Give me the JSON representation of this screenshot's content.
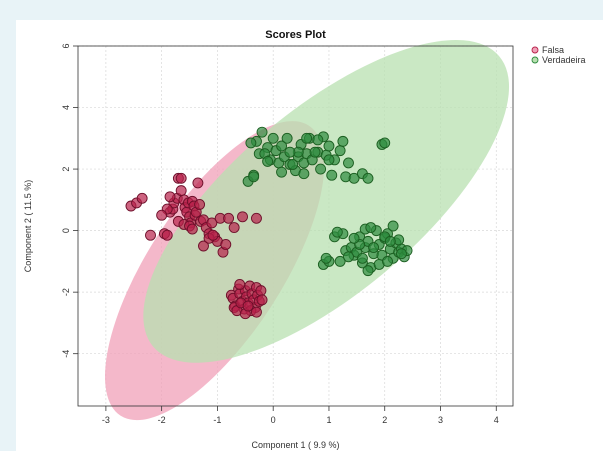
{
  "chart_data": {
    "type": "scatter",
    "title": "Scores Plot",
    "xlabel": "Component 1 ( 9.9 %)",
    "ylabel": "Component 2 ( 11.5 %)",
    "xlim": [
      -3.5,
      4.3
    ],
    "ylim": [
      -5.7,
      6.0
    ],
    "xticks": [
      -3,
      -2,
      -1,
      0,
      1,
      2,
      3,
      4
    ],
    "yticks": [
      -4,
      -2,
      0,
      2,
      4,
      6
    ],
    "grid": true,
    "legend_position": "top-right",
    "series": [
      {
        "name": "Falsa",
        "fill": "#b8214a",
        "stroke": "#6d0f2a",
        "ellipse_color": "#f0a0b8",
        "ellipse": {
          "cx": -1.05,
          "cy": -1.3,
          "rx": 3.1,
          "ry": 1.2,
          "angle_deg": -57
        },
        "x": [
          -2.55,
          -2.45,
          -2.35,
          -2.2,
          -1.95,
          -1.9,
          -1.85,
          -1.8,
          -1.78,
          -1.72,
          -1.7,
          -1.65,
          -1.6,
          -1.58,
          -1.55,
          -1.52,
          -1.5,
          -1.48,
          -1.45,
          -1.42,
          -1.4,
          -1.38,
          -1.35,
          -1.32,
          -1.3,
          -1.25,
          -1.2,
          -1.15,
          -1.1,
          -1.05,
          -1.0,
          -0.95,
          -0.9,
          -0.85,
          -0.8,
          -0.7,
          -0.55,
          -0.3,
          -1.9,
          -2.0,
          -1.7,
          -1.6,
          -1.5,
          -1.45,
          -1.65,
          -1.85,
          -1.25,
          -1.15,
          -1.08,
          -0.75,
          -0.72,
          -0.68,
          -0.62,
          -0.6,
          -0.55,
          -0.52,
          -0.5,
          -0.48,
          -0.45,
          -0.42,
          -0.38,
          -0.35,
          -0.32,
          -0.3,
          -0.28,
          -0.25,
          -0.22,
          -0.7,
          -0.65,
          -0.58,
          -0.4,
          -0.2,
          -0.5,
          -0.6,
          -0.45,
          -0.3
        ],
        "y": [
          0.8,
          0.9,
          1.05,
          -0.15,
          -0.1,
          -0.15,
          0.6,
          0.7,
          0.9,
          1.05,
          1.7,
          1.7,
          1.0,
          0.75,
          0.6,
          0.9,
          0.45,
          0.25,
          0.95,
          0.8,
          0.5,
          0.6,
          1.55,
          0.85,
          0.3,
          0.35,
          0.1,
          -0.1,
          0.25,
          -0.2,
          -0.35,
          0.4,
          -0.7,
          -0.45,
          0.4,
          0.1,
          0.45,
          0.4,
          0.7,
          0.5,
          0.3,
          0.2,
          0.15,
          0.05,
          1.3,
          1.1,
          -0.5,
          -0.25,
          -0.15,
          -2.1,
          -2.2,
          -2.45,
          -1.9,
          -2.05,
          -2.3,
          -2.55,
          -1.95,
          -2.15,
          -2.35,
          -1.8,
          -2.05,
          -2.25,
          -2.5,
          -1.85,
          -2.1,
          -2.3,
          -1.95,
          -2.5,
          -2.6,
          -2.35,
          -2.6,
          -2.25,
          -2.7,
          -1.75,
          -2.45,
          -2.65
        ]
      },
      {
        "name": "Verdadeira",
        "fill": "#2e8b3e",
        "stroke": "#1b5e20",
        "ellipse_color": "#b8e0b0",
        "ellipse": {
          "cx": 0.95,
          "cy": 0.95,
          "rx": 4.05,
          "ry": 1.65,
          "angle_deg": -40
        },
        "x": [
          -0.35,
          -0.3,
          -0.25,
          -0.2,
          -0.1,
          -0.05,
          0.0,
          0.05,
          0.1,
          0.15,
          0.2,
          0.25,
          0.3,
          0.4,
          0.45,
          0.5,
          0.55,
          0.6,
          0.65,
          0.7,
          0.8,
          0.85,
          0.9,
          0.95,
          1.0,
          1.05,
          1.1,
          1.2,
          1.25,
          1.3,
          1.35,
          0.45,
          -0.4,
          -0.15,
          0.35,
          0.15,
          0.75,
          1.95,
          2.0,
          -0.1,
          0.55,
          1.0,
          0.8,
          -0.45,
          -0.35,
          1.45,
          1.6,
          1.7,
          0.3,
          0.6
        ],
        "y": [
          1.8,
          2.9,
          2.5,
          3.2,
          2.7,
          2.3,
          3.0,
          2.6,
          2.2,
          2.75,
          2.4,
          3.0,
          2.15,
          1.95,
          2.4,
          2.8,
          2.2,
          2.5,
          3.0,
          2.3,
          2.55,
          2.0,
          3.05,
          2.45,
          2.75,
          1.8,
          2.3,
          2.6,
          2.9,
          1.75,
          2.2,
          2.55,
          2.85,
          2.5,
          2.15,
          1.9,
          2.55,
          2.8,
          2.85,
          2.25,
          1.85,
          2.3,
          2.95,
          1.6,
          1.75,
          1.7,
          1.85,
          1.7,
          2.55,
          3.0
        ]
      },
      {
        "name": "Verdadeira (lower cluster)",
        "fill": "#2e8b3e",
        "stroke": "#1b5e20",
        "legend": false,
        "x": [
          0.9,
          1.0,
          1.1,
          1.2,
          1.3,
          1.4,
          1.45,
          1.5,
          1.55,
          1.6,
          1.65,
          1.7,
          1.75,
          1.8,
          1.85,
          1.9,
          1.95,
          2.0,
          2.05,
          2.1,
          2.15,
          2.2,
          2.25,
          2.3,
          2.35,
          2.4,
          1.25,
          1.6,
          1.7,
          1.8,
          1.9,
          2.0,
          1.55,
          1.65,
          1.35,
          2.15,
          2.25,
          1.45,
          1.75,
          2.05,
          1.15,
          0.95,
          2.3,
          2.1
        ],
        "y": [
          -1.1,
          -1.0,
          -0.2,
          -1.0,
          -0.65,
          -0.55,
          -0.8,
          -0.7,
          -0.2,
          -1.05,
          -0.55,
          -0.35,
          -1.2,
          -0.75,
          0.0,
          -0.45,
          -0.8,
          -0.25,
          -0.1,
          -0.6,
          -0.9,
          -0.4,
          -0.7,
          -0.6,
          -0.85,
          -0.65,
          -0.1,
          -0.9,
          -1.3,
          -0.55,
          -1.1,
          -0.2,
          -0.45,
          0.05,
          -0.85,
          0.15,
          -0.3,
          -0.25,
          0.1,
          -1.0,
          -0.05,
          -0.9,
          -0.75,
          -0.35
        ]
      }
    ]
  }
}
